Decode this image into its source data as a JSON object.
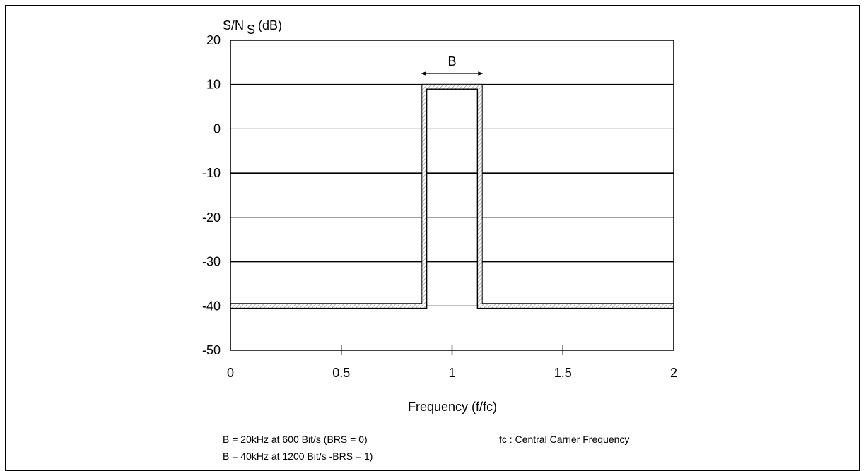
{
  "chart_data": {
    "type": "line",
    "title": "",
    "ylabel_main": "S/N",
    "ylabel_sub": "S",
    "ylabel_unit": "(dB)",
    "xlabel": "Frequency  (f/fc)",
    "xlim": [
      0,
      2
    ],
    "ylim": [
      -50,
      20
    ],
    "x_ticks": [
      0,
      0.5,
      1,
      1.5,
      2
    ],
    "x_tick_labels": [
      "0",
      "0.5",
      "1",
      "1.5",
      "2"
    ],
    "y_ticks": [
      20,
      10,
      0,
      -10,
      -20,
      -30,
      -40,
      -50
    ],
    "y_tick_labels": [
      "20",
      "10",
      "0",
      "-10",
      "-20",
      "-30",
      "-40",
      "-50"
    ],
    "grid": true,
    "series": [
      {
        "x": [
          0,
          0.875,
          0.875,
          1.125,
          1.125,
          2
        ],
        "y": [
          -40,
          -40,
          9.5,
          9.5,
          -40,
          -40
        ]
      }
    ],
    "annotations": [
      {
        "label": "B",
        "x_from": 0.875,
        "x_to": 1.125,
        "y": 12.5
      }
    ]
  },
  "notes": {
    "line1": "B = 20kHz at 600 Bit/s (BRS = 0)",
    "line2": "B = 40kHz at 1200 Bit/s -BRS = 1)",
    "fc_note": "fc : Central Carrier Frequency"
  },
  "colors": {
    "axis": "#000000",
    "hatch": "#bdbdbd"
  }
}
